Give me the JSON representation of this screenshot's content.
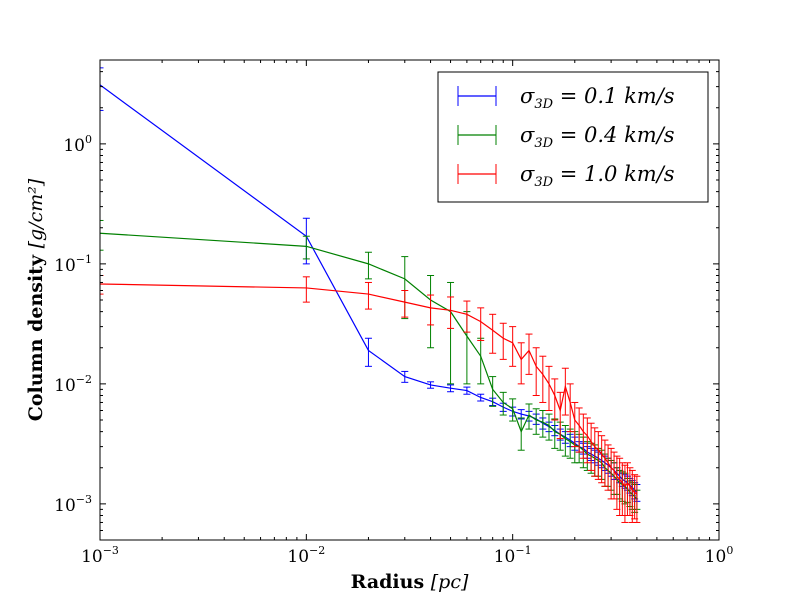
{
  "chart_data": {
    "type": "line",
    "title": "",
    "xlabel": {
      "bold": "Radius",
      "unit": "[pc]"
    },
    "ylabel": {
      "bold": "Column density",
      "unit": "[g/cm²]"
    },
    "xscale": "log",
    "yscale": "log",
    "xlim": [
      0.001,
      1
    ],
    "ylim": [
      0.0005,
      5
    ],
    "xticks": [
      {
        "value": 0.001,
        "base": "10",
        "exp": "−3"
      },
      {
        "value": 0.01,
        "base": "10",
        "exp": "−2"
      },
      {
        "value": 0.1,
        "base": "10",
        "exp": "−1"
      },
      {
        "value": 1,
        "base": "10",
        "exp": "0"
      }
    ],
    "yticks": [
      {
        "value": 0.001,
        "base": "10",
        "exp": "−3"
      },
      {
        "value": 0.01,
        "base": "10",
        "exp": "−2"
      },
      {
        "value": 0.1,
        "base": "10",
        "exp": "−1"
      },
      {
        "value": 1,
        "base": "10",
        "exp": "0"
      }
    ],
    "legend_position": "top-right",
    "series": [
      {
        "name": "σ3D = 0.1 km/s",
        "color": "#0000ff",
        "x": [
          0.001,
          0.01,
          0.02,
          0.03,
          0.04,
          0.05,
          0.06,
          0.07,
          0.08,
          0.09,
          0.1,
          0.11,
          0.12,
          0.13,
          0.14,
          0.15,
          0.16,
          0.17,
          0.18,
          0.19,
          0.2,
          0.21,
          0.22,
          0.23,
          0.24,
          0.25,
          0.26,
          0.27,
          0.28,
          0.29,
          0.3,
          0.31,
          0.32,
          0.33,
          0.34,
          0.35,
          0.36,
          0.37,
          0.38,
          0.39,
          0.4
        ],
        "y": [
          3.1,
          0.17,
          0.019,
          0.0115,
          0.0098,
          0.0092,
          0.0088,
          0.0077,
          0.0071,
          0.0064,
          0.0059,
          0.0056,
          0.0054,
          0.0051,
          0.0047,
          0.0044,
          0.0041,
          0.0038,
          0.0036,
          0.0034,
          0.0032,
          0.003,
          0.0029,
          0.0027,
          0.0026,
          0.0025,
          0.0024,
          0.0023,
          0.0022,
          0.0021,
          0.002,
          0.0019,
          0.0018,
          0.0017,
          0.0016,
          0.00155,
          0.0015,
          0.00143,
          0.00137,
          0.0013,
          0.00125
        ],
        "err": [
          1.2,
          0.07,
          0.005,
          0.0012,
          0.0006,
          0.0006,
          0.0006,
          0.0005,
          0.0005,
          0.0005,
          0.0005,
          0.0005,
          0.0005,
          0.0005,
          0.0005,
          0.0004,
          0.0004,
          0.0004,
          0.0004,
          0.0004,
          0.0004,
          0.0003,
          0.0003,
          0.0003,
          0.0003,
          0.0003,
          0.0003,
          0.0003,
          0.0003,
          0.0003,
          0.0003,
          0.0003,
          0.0002,
          0.0002,
          0.0002,
          0.0002,
          0.0002,
          0.0002,
          0.0002,
          0.0002,
          0.0002
        ]
      },
      {
        "name": "σ3D = 0.4 km/s",
        "color": "#008000",
        "x": [
          0.001,
          0.01,
          0.02,
          0.03,
          0.04,
          0.05,
          0.06,
          0.07,
          0.08,
          0.09,
          0.1,
          0.11,
          0.12,
          0.13,
          0.14,
          0.15,
          0.16,
          0.17,
          0.18,
          0.19,
          0.2,
          0.21,
          0.22,
          0.23,
          0.24,
          0.25,
          0.26,
          0.27,
          0.28,
          0.29,
          0.3,
          0.31,
          0.32,
          0.33,
          0.34,
          0.35,
          0.36,
          0.37,
          0.38,
          0.39,
          0.4
        ],
        "y": [
          0.18,
          0.14,
          0.1,
          0.075,
          0.05,
          0.04,
          0.025,
          0.017,
          0.009,
          0.007,
          0.0062,
          0.004,
          0.0055,
          0.005,
          0.0048,
          0.0045,
          0.004,
          0.0038,
          0.0035,
          0.0033,
          0.0031,
          0.003,
          0.0028,
          0.0026,
          0.0025,
          0.0024,
          0.0023,
          0.0022,
          0.002,
          0.0019,
          0.0018,
          0.0017,
          0.0016,
          0.0015,
          0.00145,
          0.0014,
          0.00133,
          0.00125,
          0.0012,
          0.00115,
          0.0011
        ],
        "err": [
          0.05,
          0.03,
          0.025,
          0.04,
          0.03,
          0.03,
          0.015,
          0.007,
          0.0025,
          0.0015,
          0.0013,
          0.0012,
          0.0013,
          0.0012,
          0.0012,
          0.0011,
          0.0011,
          0.001,
          0.001,
          0.0009,
          0.0009,
          0.0008,
          0.0008,
          0.0007,
          0.0007,
          0.0007,
          0.0006,
          0.0006,
          0.0006,
          0.0005,
          0.0005,
          0.0005,
          0.0004,
          0.0004,
          0.0004,
          0.0004,
          0.0003,
          0.0003,
          0.0003,
          0.0003,
          0.0002
        ]
      },
      {
        "name": "σ3D = 1.0 km/s",
        "color": "#ff0000",
        "x": [
          0.001,
          0.01,
          0.02,
          0.03,
          0.04,
          0.05,
          0.06,
          0.07,
          0.08,
          0.09,
          0.1,
          0.11,
          0.12,
          0.13,
          0.14,
          0.15,
          0.16,
          0.17,
          0.18,
          0.19,
          0.2,
          0.21,
          0.22,
          0.23,
          0.24,
          0.25,
          0.26,
          0.27,
          0.28,
          0.29,
          0.3,
          0.31,
          0.32,
          0.33,
          0.34,
          0.35,
          0.36,
          0.37,
          0.38,
          0.39,
          0.4
        ],
        "y": [
          0.068,
          0.063,
          0.056,
          0.048,
          0.043,
          0.041,
          0.038,
          0.033,
          0.028,
          0.024,
          0.022,
          0.016,
          0.019,
          0.014,
          0.012,
          0.01,
          0.008,
          0.006,
          0.0095,
          0.007,
          0.005,
          0.0045,
          0.004,
          0.0037,
          0.0033,
          0.003,
          0.0028,
          0.0026,
          0.0024,
          0.0022,
          0.002,
          0.0019,
          0.0017,
          0.0016,
          0.0015,
          0.0014,
          0.0015,
          0.0014,
          0.0013,
          0.00125,
          0.0012
        ],
        "err": [
          0.012,
          0.015,
          0.014,
          0.012,
          0.012,
          0.012,
          0.011,
          0.01,
          0.01,
          0.008,
          0.008,
          0.006,
          0.007,
          0.006,
          0.005,
          0.004,
          0.003,
          0.0025,
          0.004,
          0.003,
          0.002,
          0.0018,
          0.0016,
          0.0015,
          0.0014,
          0.0013,
          0.0012,
          0.0011,
          0.001,
          0.0009,
          0.0009,
          0.0008,
          0.0008,
          0.0008,
          0.0007,
          0.0007,
          0.0007,
          0.0006,
          0.0006,
          0.0005,
          0.0005
        ]
      }
    ]
  },
  "legend": {
    "items": [
      {
        "sym": "σ",
        "sub": "3D",
        "rest": " = 0.1 km/s",
        "color": "#0000ff"
      },
      {
        "sym": "σ",
        "sub": "3D",
        "rest": " = 0.4 km/s",
        "color": "#008000"
      },
      {
        "sym": "σ",
        "sub": "3D",
        "rest": " = 1.0 km/s",
        "color": "#ff0000"
      }
    ]
  }
}
